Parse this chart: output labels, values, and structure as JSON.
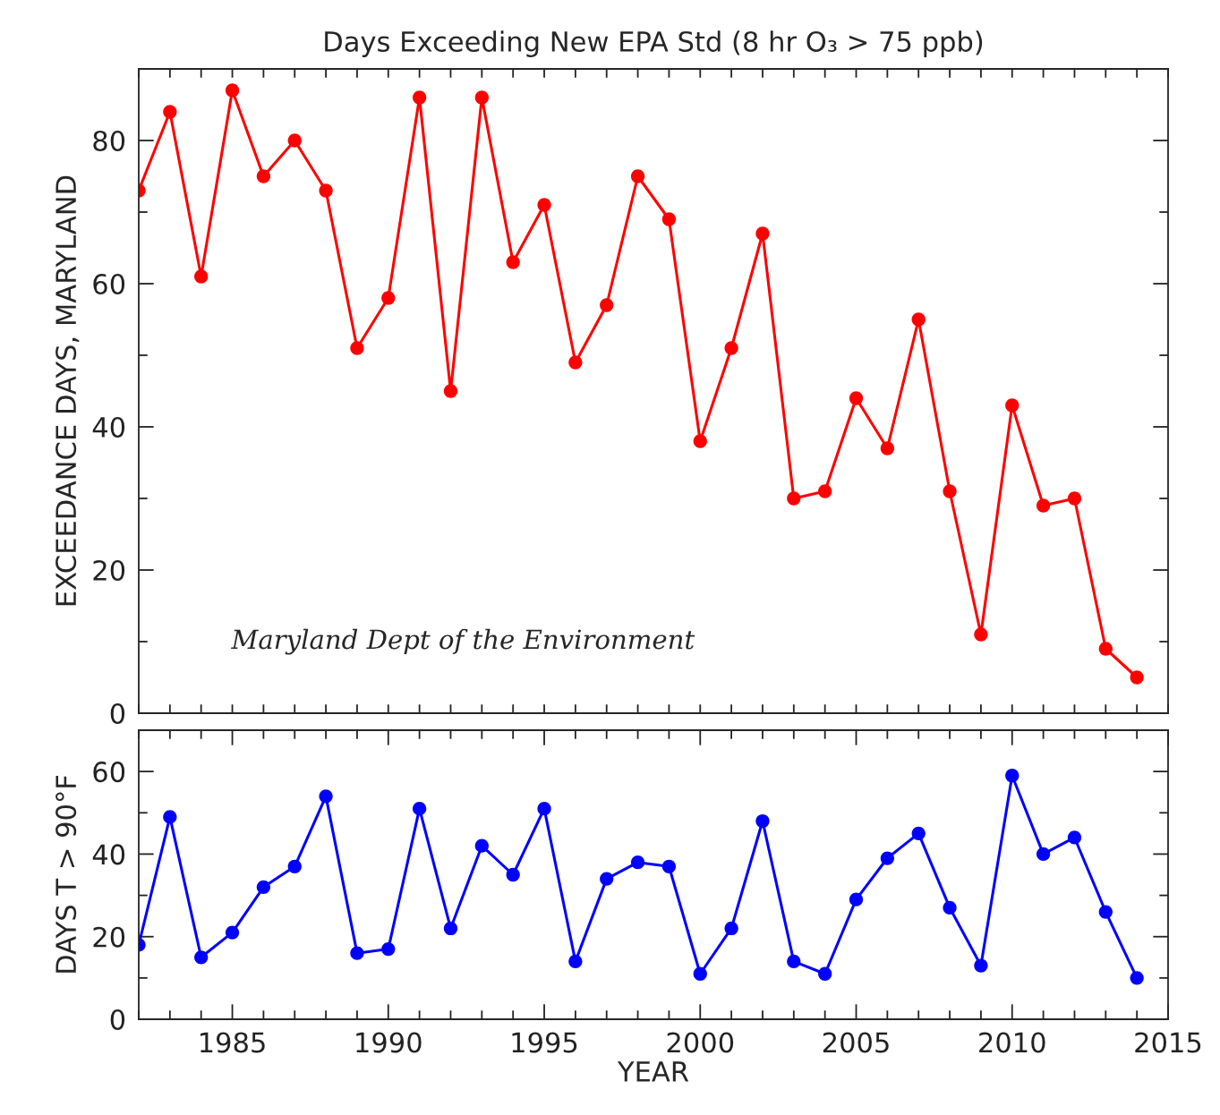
{
  "chart_data": [
    {
      "type": "line",
      "title": "Days Exceeding New EPA Std (8 hr O₃ > 75 ppb)",
      "ylabel": "EXCEEDANCE DAYS, MARYLAND",
      "annotations": [
        "Maryland Dept of the Environment"
      ],
      "x": [
        1982,
        1983,
        1984,
        1985,
        1986,
        1987,
        1988,
        1989,
        1990,
        1991,
        1992,
        1993,
        1994,
        1995,
        1996,
        1997,
        1998,
        1999,
        2000,
        2001,
        2002,
        2003,
        2004,
        2005,
        2006,
        2007,
        2008,
        2009,
        2010,
        2011,
        2012,
        2013,
        2014
      ],
      "series": [
        {
          "color": "#ff0000",
          "values": [
            73,
            84,
            61,
            87,
            75,
            80,
            73,
            51,
            58,
            86,
            45,
            86,
            63,
            71,
            49,
            57,
            75,
            69,
            38,
            51,
            67,
            30,
            31,
            44,
            37,
            55,
            31,
            11,
            43,
            29,
            30,
            9,
            5
          ]
        }
      ],
      "xlim": [
        1982,
        2015
      ],
      "ylim": [
        0,
        90
      ],
      "xticks": [
        {
          "value": 1982,
          "label": null
        },
        {
          "value": 1983,
          "label": null
        },
        {
          "value": 1984,
          "label": null
        },
        {
          "value": 1985,
          "label": null
        },
        {
          "value": 1986,
          "label": null
        },
        {
          "value": 1987,
          "label": null
        },
        {
          "value": 1988,
          "label": null
        },
        {
          "value": 1989,
          "label": null
        },
        {
          "value": 1990,
          "label": null
        },
        {
          "value": 1991,
          "label": null
        },
        {
          "value": 1992,
          "label": null
        },
        {
          "value": 1993,
          "label": null
        },
        {
          "value": 1994,
          "label": null
        },
        {
          "value": 1995,
          "label": null
        },
        {
          "value": 1996,
          "label": null
        },
        {
          "value": 1997,
          "label": null
        },
        {
          "value": 1998,
          "label": null
        },
        {
          "value": 1999,
          "label": null
        },
        {
          "value": 2000,
          "label": null
        },
        {
          "value": 2001,
          "label": null
        },
        {
          "value": 2002,
          "label": null
        },
        {
          "value": 2003,
          "label": null
        },
        {
          "value": 2004,
          "label": null
        },
        {
          "value": 2005,
          "label": null
        },
        {
          "value": 2006,
          "label": null
        },
        {
          "value": 2007,
          "label": null
        },
        {
          "value": 2008,
          "label": null
        },
        {
          "value": 2009,
          "label": null
        },
        {
          "value": 2010,
          "label": null
        },
        {
          "value": 2011,
          "label": null
        },
        {
          "value": 2012,
          "label": null
        },
        {
          "value": 2013,
          "label": null
        },
        {
          "value": 2014,
          "label": null
        },
        {
          "value": 2015,
          "label": null
        }
      ],
      "yticks": [
        0,
        {
          "value": 10,
          "label": null
        },
        20,
        {
          "value": 30,
          "label": null
        },
        40,
        {
          "value": 50,
          "label": null
        },
        60,
        {
          "value": 70,
          "label": null
        },
        80
      ],
      "tick_labels": "y",
      "marker": "circle",
      "grid": false
    },
    {
      "type": "line",
      "ylabel": "DAYS T > 90°F",
      "xlabel": "YEAR",
      "x": [
        1982,
        1983,
        1984,
        1985,
        1986,
        1987,
        1988,
        1989,
        1990,
        1991,
        1992,
        1993,
        1994,
        1995,
        1996,
        1997,
        1998,
        1999,
        2000,
        2001,
        2002,
        2003,
        2004,
        2005,
        2006,
        2007,
        2008,
        2009,
        2010,
        2011,
        2012,
        2013,
        2014
      ],
      "series": [
        {
          "color": "#0000ff",
          "values": [
            18,
            49,
            15,
            21,
            32,
            37,
            54,
            16,
            17,
            51,
            22,
            42,
            35,
            51,
            14,
            34,
            38,
            37,
            11,
            22,
            48,
            14,
            11,
            29,
            39,
            45,
            27,
            13,
            59,
            40,
            44,
            26,
            10
          ]
        }
      ],
      "xlim": [
        1982,
        2015
      ],
      "ylim": [
        0,
        70
      ],
      "xticks": [
        {
          "value": 1982,
          "label": null
        },
        {
          "value": 1983,
          "label": null
        },
        {
          "value": 1984,
          "label": null
        },
        1985,
        {
          "value": 1986,
          "label": null
        },
        {
          "value": 1987,
          "label": null
        },
        {
          "value": 1988,
          "label": null
        },
        {
          "value": 1989,
          "label": null
        },
        1990,
        {
          "value": 1991,
          "label": null
        },
        {
          "value": 1992,
          "label": null
        },
        {
          "value": 1993,
          "label": null
        },
        {
          "value": 1994,
          "label": null
        },
        1995,
        {
          "value": 1996,
          "label": null
        },
        {
          "value": 1997,
          "label": null
        },
        {
          "value": 1998,
          "label": null
        },
        {
          "value": 1999,
          "label": null
        },
        2000,
        {
          "value": 2001,
          "label": null
        },
        {
          "value": 2002,
          "label": null
        },
        {
          "value": 2003,
          "label": null
        },
        {
          "value": 2004,
          "label": null
        },
        2005,
        {
          "value": 2006,
          "label": null
        },
        {
          "value": 2007,
          "label": null
        },
        {
          "value": 2008,
          "label": null
        },
        {
          "value": 2009,
          "label": null
        },
        2010,
        {
          "value": 2011,
          "label": null
        },
        {
          "value": 2012,
          "label": null
        },
        {
          "value": 2013,
          "label": null
        },
        {
          "value": 2014,
          "label": null
        },
        2015
      ],
      "yticks": [
        0,
        {
          "value": 10,
          "label": null
        },
        20,
        {
          "value": 30,
          "label": null
        },
        40,
        {
          "value": 50,
          "label": null
        },
        60
      ],
      "marker": "circle",
      "grid": false
    }
  ]
}
